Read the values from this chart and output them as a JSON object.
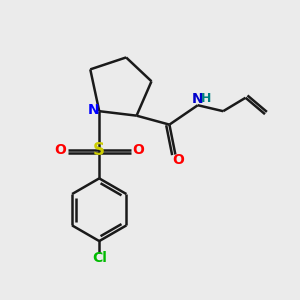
{
  "background_color": "#ebebeb",
  "bond_color": "#1a1a1a",
  "bond_width": 1.8,
  "atom_labels": {
    "N_ring": {
      "color": "#0000ff",
      "fontsize": 10,
      "fontweight": "bold"
    },
    "N_amide": {
      "color": "#0000cc",
      "fontsize": 10,
      "fontweight": "bold"
    },
    "H_amide": {
      "color": "#008080",
      "fontsize": 9,
      "fontweight": "bold"
    },
    "O_sulfonyl": {
      "color": "#ff0000",
      "fontsize": 10,
      "fontweight": "bold"
    },
    "O_amide": {
      "color": "#ff0000",
      "fontsize": 10,
      "fontweight": "bold"
    },
    "S": {
      "color": "#cccc00",
      "fontsize": 12,
      "fontweight": "bold"
    },
    "Cl": {
      "color": "#00bb00",
      "fontsize": 10,
      "fontweight": "bold"
    }
  },
  "figsize": [
    3.0,
    3.0
  ],
  "dpi": 100,
  "xlim": [
    0,
    10
  ],
  "ylim": [
    0,
    10
  ]
}
